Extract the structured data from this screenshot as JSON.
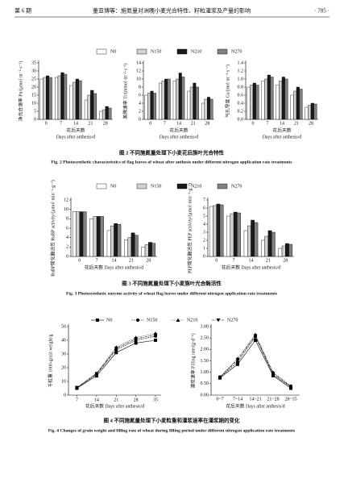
{
  "header": {
    "left": "第 6 期",
    "center": "董亚博等：施氮量对洲晚小麦光合特性、籽粒灌浆及产量的影响",
    "right": "· 785 ·"
  },
  "captions": [
    {
      "zh": "图 2  不同施氮量处理下小麦花后旗叶光合特性",
      "en": "Fig. 2  Photosynthetic characteristics of flag leaves of wheat after anthesis under different nitrogen application rate treatments"
    },
    {
      "zh": "图 3  不同施氮量处理下小麦旗叶光合酶活性",
      "en": "Fig. 3  Photosynthetic enzyme activity of wheat flag leaves under different nitrogen application rate treatments"
    },
    {
      "zh": "图 4  不同施氮量处理下小麦粒重和灌浆速率在灌浆期的变化",
      "en": "Fig. 4  Changes of grain weight and filling rate of wheat during filling period under different nitrogen application rate treatments"
    }
  ],
  "chart_data": [
    {
      "type": "bar",
      "ylabel": "净光合速率 Pn/(μmol·m⁻²·s⁻¹)",
      "xlabel": "花后天数",
      "xlabel_en": "Days after anthesis/d",
      "categories": [
        "0",
        "7",
        "14",
        "21",
        "28"
      ],
      "ylim": [
        0,
        35
      ],
      "yticks": [
        0,
        5,
        10,
        15,
        20,
        25,
        30,
        35
      ],
      "series": [
        {
          "name": "N0",
          "color": "#ffffff",
          "values": [
            25,
            26,
            21,
            12,
            5
          ]
        },
        {
          "name": "N150",
          "color": "#d0d0d0",
          "values": [
            26,
            27,
            23,
            15,
            6
          ]
        },
        {
          "name": "N210",
          "color": "#1a1a1a",
          "values": [
            27,
            29,
            25,
            18,
            8
          ]
        },
        {
          "name": "N270",
          "color": "#808080",
          "values": [
            26,
            28,
            24,
            16,
            7
          ]
        }
      ]
    },
    {
      "type": "bar",
      "ylabel": "蒸腾速率 Tr/(mmol·m⁻²·s⁻¹)",
      "xlabel": "花后天数",
      "xlabel_en": "Days after anthesis/d",
      "categories": [
        "0",
        "7",
        "14",
        "21",
        "28"
      ],
      "ylim": [
        0,
        14
      ],
      "yticks": [
        0,
        2,
        4,
        6,
        8,
        10,
        12,
        14
      ],
      "series": [
        {
          "color": "#ffffff",
          "values": [
            6,
            9,
            9.5,
            7,
            4
          ]
        },
        {
          "color": "#d0d0d0",
          "values": [
            6.5,
            9.5,
            10,
            8,
            5
          ]
        },
        {
          "color": "#1a1a1a",
          "values": [
            7,
            10,
            11.5,
            9,
            5.5
          ]
        },
        {
          "color": "#808080",
          "values": [
            6.5,
            10,
            10.5,
            8,
            5
          ]
        }
      ]
    },
    {
      "type": "bar",
      "ylabel": "气孔导度 Gs/(mol·m⁻²·s⁻¹)",
      "xlabel": "花后天数",
      "xlabel_en": "Days after anthesis/d",
      "categories": [
        "0",
        "7",
        "14",
        "21",
        "28"
      ],
      "ylim": [
        0,
        1.4
      ],
      "yticks": [
        {
          "value": 0,
          "label": "0.0"
        },
        0.2,
        0.4,
        0.6,
        0.8,
        {
          "value": 1,
          "label": "1.0"
        },
        1.2,
        1.4
      ],
      "series": [
        {
          "color": "#ffffff",
          "values": [
            0.8,
            0.95,
            0.85,
            0.6,
            0.3
          ]
        },
        {
          "color": "#d0d0d0",
          "values": [
            0.85,
            1.0,
            0.95,
            0.7,
            0.35
          ]
        },
        {
          "color": "#1a1a1a",
          "values": [
            0.9,
            1.1,
            1.05,
            0.8,
            0.4
          ]
        },
        {
          "color": "#808080",
          "values": [
            0.85,
            1.05,
            1.0,
            0.75,
            0.38
          ]
        }
      ]
    },
    {
      "type": "bar",
      "ylabel": "RuBP羧化酶活性 RuBP activity/(μmol·min⁻¹·g⁻¹)",
      "xlabel": "花后天数 Days after anthesis/d",
      "categories": [
        "0",
        "7",
        "14",
        "21",
        "28"
      ],
      "ylim": [
        0,
        12
      ],
      "yticks": [
        0,
        2,
        4,
        6,
        8,
        10,
        12
      ],
      "series": [
        {
          "name": "N0",
          "color": "#ffffff",
          "values": [
            9.5,
            8,
            5.5,
            3.5,
            2
          ]
        },
        {
          "name": "N150",
          "color": "#d0d0d0",
          "values": [
            9.5,
            8.5,
            6.5,
            4,
            2.5
          ]
        },
        {
          "name": "N210",
          "color": "#1a1a1a",
          "values": [
            9.5,
            8.5,
            7,
            5,
            3
          ]
        },
        {
          "name": "N270",
          "color": "#808080",
          "values": [
            9.5,
            8.5,
            6.8,
            4.5,
            2.8
          ]
        }
      ]
    },
    {
      "type": "bar",
      "ylabel": "PEP羧化酶活性 PEP activity/(μmol·min⁻¹·g⁻¹)",
      "xlabel": "花后天数 Days after anthesis/d",
      "categories": [
        "0",
        "7",
        "14",
        "21",
        "28"
      ],
      "ylim": [
        0,
        7
      ],
      "yticks": [
        0,
        1,
        2,
        3,
        4,
        5,
        6,
        7
      ],
      "series": [
        {
          "color": "#ffffff",
          "values": [
            6.2,
            5,
            3.2,
            2,
            1
          ]
        },
        {
          "color": "#d0d0d0",
          "values": [
            6.3,
            5.3,
            3.8,
            2.5,
            1.3
          ]
        },
        {
          "color": "#1a1a1a",
          "values": [
            6.5,
            5.5,
            4.5,
            3.2,
            1.6
          ]
        },
        {
          "color": "#808080",
          "values": [
            6.4,
            5.4,
            4.2,
            3,
            1.5
          ]
        }
      ]
    },
    {
      "type": "line",
      "ylabel": "千粒重 1000-grain weight/g",
      "xlabel": "花后天数 Days after anthesis/d",
      "x": [
        7,
        14,
        21,
        28,
        35
      ],
      "xlim": [
        4,
        37
      ],
      "xticks": [
        7,
        14,
        21,
        28,
        35
      ],
      "ylim": [
        0,
        50
      ],
      "yticks": [
        0,
        10,
        20,
        30,
        40,
        50
      ],
      "series": [
        {
          "name": "N0",
          "color": "#000000",
          "marker": "square",
          "values": [
            5,
            14,
            31,
            38,
            40
          ]
        },
        {
          "name": "N150",
          "color": "#000000",
          "marker": "circle",
          "values": [
            5,
            15,
            33,
            40,
            43
          ]
        },
        {
          "name": "N210",
          "color": "#000000",
          "marker": "triangle-up",
          "values": [
            5.5,
            16,
            35,
            42,
            45
          ]
        },
        {
          "name": "N270",
          "color": "#000000",
          "marker": "triangle-down",
          "values": [
            5.5,
            15.5,
            34,
            41,
            44
          ]
        }
      ]
    },
    {
      "type": "line",
      "ylabel": "灌浆速率 Filling rate/(g·d⁻¹)",
      "xlabel": "花后天数 Days after anthesis/d",
      "categories": [
        "0~7",
        "7~14",
        "14~21",
        "21~28",
        "28~35"
      ],
      "ylim": [
        0,
        3
      ],
      "yticks": [
        {
          "value": 0,
          "label": "0.00"
        },
        {
          "value": 0.5,
          "label": "0.50"
        },
        {
          "value": 1,
          "label": "1.00"
        },
        {
          "value": 1.5,
          "label": "1.50"
        },
        {
          "value": 2,
          "label": "2.00"
        },
        {
          "value": 2.5,
          "label": "2.50"
        },
        {
          "value": 3,
          "label": "3.00"
        }
      ],
      "series": [
        {
          "color": "#000000",
          "marker": "square",
          "values": [
            0.75,
            1.35,
            2.4,
            0.85,
            0.3
          ]
        },
        {
          "color": "#000000",
          "marker": "circle",
          "values": [
            0.78,
            1.45,
            2.55,
            0.9,
            0.35
          ]
        },
        {
          "color": "#000000",
          "marker": "triangle-up",
          "values": [
            0.8,
            1.6,
            2.65,
            1.0,
            0.4
          ]
        },
        {
          "color": "#000000",
          "marker": "triangle-down",
          "values": [
            0.78,
            1.55,
            2.6,
            0.95,
            0.38
          ]
        }
      ]
    }
  ]
}
